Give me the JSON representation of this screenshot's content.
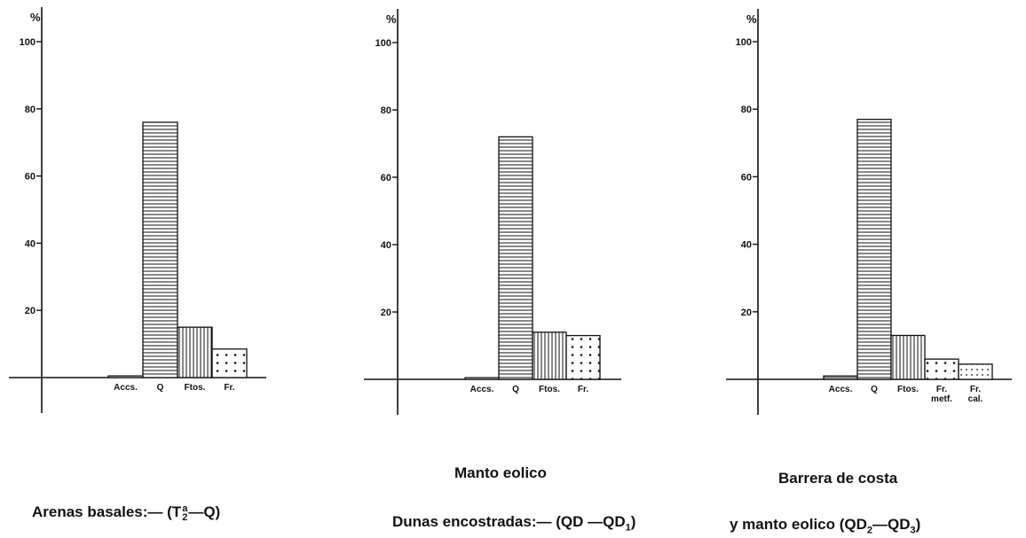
{
  "colors": {
    "ink": "#111111",
    "background": "#ffffff"
  },
  "chart_data": [
    {
      "type": "bar",
      "y_unit_label": "%",
      "y_ticks": [
        "100",
        "80",
        "60",
        "40",
        "20"
      ],
      "ylim": [
        0,
        100
      ],
      "categories": [
        "Accs.",
        "Q",
        "Ftos.",
        "Fr."
      ],
      "values": [
        0.5,
        76,
        15,
        8.5
      ],
      "patterns": [
        "horizontal",
        "horizontal",
        "vertical",
        "dots"
      ],
      "grid": false,
      "caption": {
        "main": "Arenas basales:— (T",
        "sup": "a",
        "sub": "2",
        "tail": "—Q)"
      }
    },
    {
      "type": "bar",
      "y_unit_label": "%",
      "y_ticks": [
        "100",
        "80",
        "60",
        "40",
        "20"
      ],
      "ylim": [
        0,
        100
      ],
      "categories": [
        "Accs.",
        "Q",
        "Ftos.",
        "Fr."
      ],
      "values": [
        0.5,
        72,
        14,
        13
      ],
      "patterns": [
        "horizontal",
        "horizontal",
        "vertical",
        "dots"
      ],
      "grid": false,
      "caption": {
        "line1": "Manto eolico",
        "line2_main": "Dunas encostradas:— (QD —QD",
        "line2_sub": "1",
        "line2_tail": ")"
      }
    },
    {
      "type": "bar",
      "y_unit_label": "%",
      "y_ticks": [
        "100",
        "80",
        "60",
        "40",
        "20"
      ],
      "ylim": [
        0,
        100
      ],
      "categories": [
        "Accs.",
        "Q",
        "Ftos.",
        "Fr.\nmetf.",
        "Fr.\ncal."
      ],
      "values": [
        1,
        77,
        13,
        6,
        4.5
      ],
      "patterns": [
        "horizontal",
        "horizontal",
        "vertical",
        "dots",
        "dense-dots"
      ],
      "grid": false,
      "caption": {
        "line1": "Barrera de costa",
        "line2_main": "y manto eolico (QD",
        "line2_sub1": "2",
        "line2_mid": "—QD",
        "line2_sub2": "3",
        "line2_tail": ")"
      }
    }
  ]
}
